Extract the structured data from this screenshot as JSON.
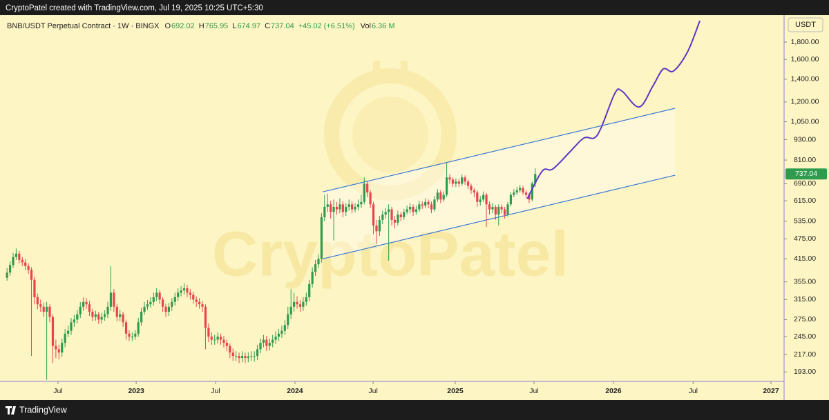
{
  "header": "CryptoPatel created with TradingView.com, Jul 19, 2025 10:25 UTC+5:30",
  "footer": "TradingView",
  "chart_data": {
    "type": "candlestick",
    "title": "BNB/USDT Perpetual Contract · 1W · BINGX",
    "ohlc_labels": [
      "O",
      "H",
      "L",
      "C"
    ],
    "change": "+45.02 (+6.51%)",
    "volume_label": "Vol",
    "volume": "6.36 M",
    "currency": "USDT",
    "watermark": "CryptoPatel",
    "up_color": "#2e9b4e",
    "down_color": "#e8434f",
    "log_scale": true,
    "ylim": [
      181,
      2160
    ],
    "yticks": [
      {
        "value": 1800,
        "label": "1,800.00"
      },
      {
        "value": 1600,
        "label": "1,600.00"
      },
      {
        "value": 1400,
        "label": "1,400.00"
      },
      {
        "value": 1200,
        "label": "1,200.00"
      },
      {
        "value": 1050,
        "label": "1,050.00"
      },
      {
        "value": 930,
        "label": "930.00"
      },
      {
        "value": 810,
        "label": "810.00"
      },
      {
        "value": 690,
        "label": "690.00"
      },
      {
        "value": 615,
        "label": "615.00"
      },
      {
        "value": 535,
        "label": "535.00"
      },
      {
        "value": 475,
        "label": "475.00"
      },
      {
        "value": 415,
        "label": "415.00"
      },
      {
        "value": 355,
        "label": "355.00"
      },
      {
        "value": 315,
        "label": "315.00"
      },
      {
        "value": 275,
        "label": "275.00"
      },
      {
        "value": 245,
        "label": "245.00"
      },
      {
        "value": 217,
        "label": "217.00"
      },
      {
        "value": 193,
        "label": "193.00"
      }
    ],
    "xlim": [
      -2.3,
      254.5
    ],
    "xticks": [
      {
        "value": 16.7,
        "label": "Jul"
      },
      {
        "value": 42.3,
        "label": "2023"
      },
      {
        "value": 68.3,
        "label": "Jul"
      },
      {
        "value": 94.3,
        "label": "2024"
      },
      {
        "value": 119.9,
        "label": "Jul"
      },
      {
        "value": 146.8,
        "label": "2025"
      },
      {
        "value": 172.6,
        "label": "Jul"
      },
      {
        "value": 198.6,
        "label": "2026"
      },
      {
        "value": 224.7,
        "label": "Jul"
      },
      {
        "value": 250.2,
        "label": "2027"
      }
    ],
    "candles": [
      [
        365,
        390,
        358,
        378
      ],
      [
        378,
        408,
        370,
        398
      ],
      [
        398,
        432,
        390,
        420
      ],
      [
        420,
        445,
        412,
        430
      ],
      [
        430,
        438,
        402,
        412
      ],
      [
        412,
        420,
        395,
        405
      ],
      [
        405,
        414,
        385,
        395
      ],
      [
        395,
        402,
        375,
        385
      ],
      [
        385,
        392,
        215,
        360
      ],
      [
        360,
        368,
        305,
        320
      ],
      [
        320,
        328,
        295,
        305
      ],
      [
        305,
        315,
        290,
        300
      ],
      [
        300,
        308,
        280,
        290
      ],
      [
        290,
        310,
        183,
        300
      ],
      [
        300,
        305,
        270,
        280
      ],
      [
        280,
        285,
        205,
        230
      ],
      [
        230,
        240,
        212,
        225
      ],
      [
        225,
        232,
        210,
        220
      ],
      [
        220,
        242,
        214,
        235
      ],
      [
        235,
        258,
        228,
        250
      ],
      [
        250,
        264,
        244,
        255
      ],
      [
        255,
        278,
        248,
        270
      ],
      [
        270,
        284,
        262,
        275
      ],
      [
        275,
        294,
        268,
        285
      ],
      [
        285,
        310,
        278,
        300
      ],
      [
        300,
        320,
        292,
        310
      ],
      [
        310,
        318,
        296,
        305
      ],
      [
        305,
        312,
        282,
        290
      ],
      [
        290,
        296,
        272,
        280
      ],
      [
        280,
        292,
        273,
        285
      ],
      [
        285,
        290,
        267,
        275
      ],
      [
        275,
        288,
        268,
        280
      ],
      [
        280,
        293,
        273,
        285
      ],
      [
        285,
        310,
        278,
        300
      ],
      [
        300,
        395,
        292,
        330
      ],
      [
        330,
        338,
        290,
        300
      ],
      [
        300,
        306,
        272,
        280
      ],
      [
        280,
        294,
        272,
        285
      ],
      [
        285,
        290,
        262,
        270
      ],
      [
        270,
        275,
        240,
        250
      ],
      [
        250,
        256,
        238,
        245
      ],
      [
        245,
        252,
        238,
        245
      ],
      [
        245,
        256,
        240,
        250
      ],
      [
        250,
        278,
        245,
        270
      ],
      [
        270,
        298,
        264,
        290
      ],
      [
        290,
        310,
        284,
        300
      ],
      [
        300,
        314,
        294,
        305
      ],
      [
        305,
        320,
        298,
        310
      ],
      [
        310,
        330,
        302,
        320
      ],
      [
        320,
        340,
        312,
        330
      ],
      [
        330,
        336,
        306,
        315
      ],
      [
        315,
        320,
        290,
        300
      ],
      [
        300,
        306,
        280,
        290
      ],
      [
        290,
        308,
        282,
        300
      ],
      [
        300,
        318,
        292,
        310
      ],
      [
        310,
        330,
        302,
        320
      ],
      [
        320,
        340,
        312,
        330
      ],
      [
        330,
        345,
        322,
        335
      ],
      [
        335,
        352,
        326,
        340
      ],
      [
        340,
        348,
        320,
        330
      ],
      [
        330,
        338,
        315,
        325
      ],
      [
        325,
        332,
        306,
        315
      ],
      [
        315,
        322,
        300,
        310
      ],
      [
        310,
        318,
        296,
        305
      ],
      [
        305,
        312,
        290,
        300
      ],
      [
        300,
        305,
        225,
        260
      ],
      [
        260,
        268,
        236,
        245
      ],
      [
        245,
        252,
        232,
        240
      ],
      [
        240,
        248,
        232,
        240
      ],
      [
        240,
        252,
        234,
        245
      ],
      [
        245,
        250,
        232,
        240
      ],
      [
        240,
        246,
        228,
        235
      ],
      [
        235,
        240,
        222,
        230
      ],
      [
        230,
        234,
        212,
        220
      ],
      [
        220,
        226,
        208,
        215
      ],
      [
        215,
        222,
        208,
        215
      ],
      [
        215,
        220,
        205,
        212
      ],
      [
        212,
        222,
        206,
        215
      ],
      [
        215,
        220,
        205,
        212
      ],
      [
        212,
        220,
        206,
        214
      ],
      [
        214,
        222,
        208,
        215
      ],
      [
        215,
        222,
        207,
        215
      ],
      [
        215,
        232,
        209,
        225
      ],
      [
        225,
        242,
        219,
        235
      ],
      [
        235,
        248,
        228,
        240
      ],
      [
        240,
        246,
        222,
        230
      ],
      [
        230,
        242,
        223,
        235
      ],
      [
        235,
        248,
        228,
        240
      ],
      [
        240,
        254,
        233,
        245
      ],
      [
        245,
        258,
        238,
        250
      ],
      [
        250,
        264,
        243,
        255
      ],
      [
        255,
        274,
        248,
        265
      ],
      [
        265,
        300,
        258,
        285
      ],
      [
        285,
        338,
        276,
        300
      ],
      [
        300,
        330,
        290,
        310
      ],
      [
        310,
        322,
        296,
        305
      ],
      [
        305,
        314,
        290,
        300
      ],
      [
        300,
        320,
        292,
        310
      ],
      [
        310,
        330,
        302,
        320
      ],
      [
        320,
        360,
        312,
        350
      ],
      [
        350,
        392,
        342,
        380
      ],
      [
        380,
        412,
        370,
        400
      ],
      [
        400,
        428,
        390,
        415
      ],
      [
        415,
        565,
        405,
        550
      ],
      [
        550,
        640,
        535,
        590
      ],
      [
        590,
        645,
        570,
        600
      ],
      [
        600,
        615,
        545,
        570
      ],
      [
        570,
        620,
        470,
        590
      ],
      [
        590,
        610,
        560,
        580
      ],
      [
        580,
        625,
        565,
        600
      ],
      [
        600,
        612,
        550,
        570
      ],
      [
        570,
        605,
        555,
        590
      ],
      [
        590,
        620,
        575,
        600
      ],
      [
        600,
        612,
        565,
        580
      ],
      [
        580,
        605,
        568,
        590
      ],
      [
        590,
        620,
        575,
        600
      ],
      [
        600,
        640,
        585,
        610
      ],
      [
        610,
        720,
        600,
        690
      ],
      [
        690,
        700,
        630,
        650
      ],
      [
        650,
        660,
        585,
        600
      ],
      [
        600,
        610,
        490,
        520
      ],
      [
        520,
        540,
        460,
        500
      ],
      [
        500,
        555,
        485,
        540
      ],
      [
        540,
        575,
        525,
        560
      ],
      [
        560,
        585,
        545,
        570
      ],
      [
        570,
        600,
        410,
        580
      ],
      [
        580,
        590,
        520,
        540
      ],
      [
        540,
        555,
        510,
        530
      ],
      [
        530,
        575,
        520,
        560
      ],
      [
        560,
        570,
        535,
        550
      ],
      [
        550,
        582,
        540,
        570
      ],
      [
        570,
        595,
        560,
        580
      ],
      [
        580,
        605,
        565,
        590
      ],
      [
        590,
        600,
        555,
        570
      ],
      [
        570,
        595,
        560,
        580
      ],
      [
        580,
        615,
        570,
        600
      ],
      [
        600,
        612,
        582,
        595
      ],
      [
        595,
        625,
        585,
        610
      ],
      [
        610,
        620,
        585,
        600
      ],
      [
        600,
        612,
        565,
        580
      ],
      [
        580,
        635,
        572,
        620
      ],
      [
        620,
        665,
        610,
        650
      ],
      [
        650,
        660,
        605,
        620
      ],
      [
        620,
        655,
        610,
        640
      ],
      [
        640,
        793,
        630,
        720
      ],
      [
        720,
        735,
        690,
        710
      ],
      [
        710,
        720,
        675,
        690
      ],
      [
        690,
        715,
        675,
        700
      ],
      [
        700,
        712,
        675,
        690
      ],
      [
        690,
        735,
        680,
        720
      ],
      [
        720,
        730,
        685,
        700
      ],
      [
        700,
        710,
        665,
        680
      ],
      [
        680,
        690,
        645,
        660
      ],
      [
        660,
        670,
        630,
        650
      ],
      [
        650,
        660,
        590,
        610
      ],
      [
        610,
        635,
        595,
        620
      ],
      [
        620,
        655,
        610,
        640
      ],
      [
        640,
        648,
        515,
        600
      ],
      [
        600,
        612,
        560,
        580
      ],
      [
        580,
        605,
        565,
        590
      ],
      [
        590,
        598,
        540,
        560
      ],
      [
        560,
        600,
        520,
        590
      ],
      [
        590,
        600,
        565,
        580
      ],
      [
        580,
        590,
        545,
        560
      ],
      [
        560,
        610,
        552,
        600
      ],
      [
        600,
        652,
        592,
        640
      ],
      [
        640,
        665,
        630,
        650
      ],
      [
        650,
        675,
        640,
        660
      ],
      [
        660,
        685,
        650,
        670
      ],
      [
        670,
        680,
        640,
        650
      ],
      [
        650,
        660,
        625,
        640
      ],
      [
        640,
        648,
        605,
        620
      ],
      [
        620,
        700,
        612,
        692
      ],
      [
        692.02,
        765.95,
        674.97,
        737.04
      ]
    ],
    "projection": {
      "color": "#5b35c4",
      "x": [
        170.4,
        175.3,
        178.7,
        184.4,
        188.9,
        192.3,
        194.6,
        199.1,
        201.4,
        207.0,
        211.5,
        214.9,
        218.3,
        222.9,
        226.9
      ],
      "values": [
        623,
        752,
        762,
        857,
        940,
        940,
        1009,
        1274,
        1292,
        1160,
        1335,
        1500,
        1480,
        1686,
        2080
      ]
    },
    "channel": {
      "color": "#3c78d8",
      "upper": {
        "x": [
          103.4,
          218.8
        ],
        "values": [
          653,
          1150
        ]
      },
      "lower": {
        "x": [
          103.4,
          218.8
        ],
        "values": [
          415,
          731
        ]
      }
    }
  }
}
